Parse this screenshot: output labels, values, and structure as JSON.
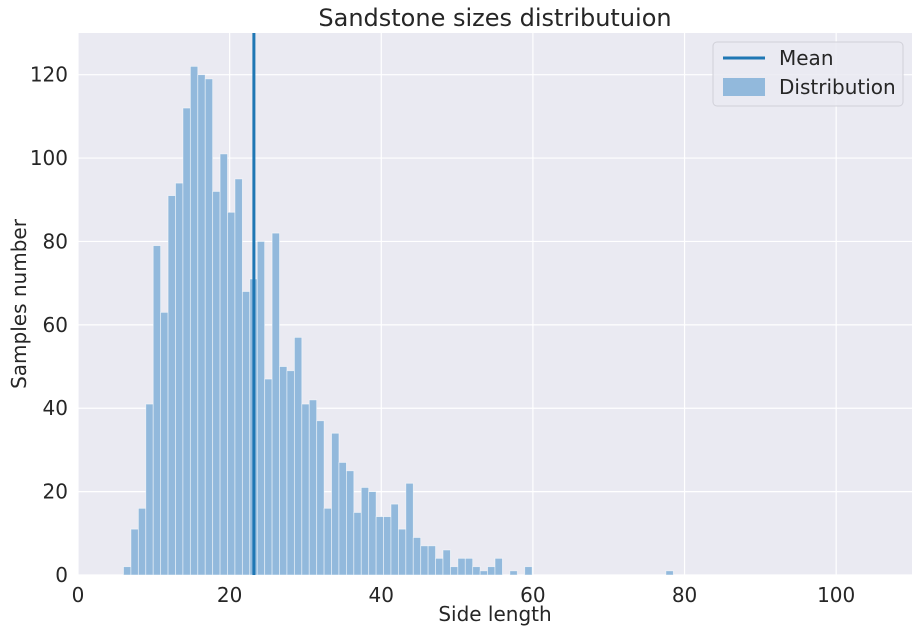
{
  "chart_data": {
    "type": "histogram",
    "title": "Sandstone sizes distributuion",
    "xlabel": "Side length",
    "ylabel": "Samples number",
    "xlim": [
      0,
      110
    ],
    "ylim": [
      0,
      130
    ],
    "xticks": [
      0,
      20,
      40,
      60,
      80,
      100
    ],
    "yticks": [
      0,
      20,
      40,
      60,
      80,
      100,
      120
    ],
    "grid": true,
    "background_color": "#EAEAF2",
    "bin_start": 6.0,
    "bin_width": 0.98,
    "bin_counts": [
      2,
      11,
      16,
      41,
      79,
      63,
      91,
      94,
      112,
      122,
      120,
      119,
      92,
      101,
      87,
      95,
      68,
      71,
      80,
      47,
      82,
      50,
      49,
      57,
      41,
      42,
      37,
      16,
      34,
      27,
      25,
      15,
      21,
      20,
      14,
      14,
      17,
      11,
      22,
      9,
      7,
      7,
      4,
      6,
      2,
      4,
      4,
      2,
      1,
      2,
      4,
      0,
      1,
      0,
      2,
      0,
      0,
      0,
      0,
      0,
      0,
      0,
      0,
      0,
      0,
      0,
      0,
      0,
      0,
      0,
      0,
      0,
      0,
      1
    ],
    "mean": 23.2,
    "series": [
      {
        "name": "Mean",
        "type": "vline",
        "color": "#1F77B4"
      },
      {
        "name": "Distribution",
        "type": "bars",
        "color": "#92B9DC"
      }
    ],
    "legend": {
      "placement": "top-right",
      "entries": [
        "Mean",
        "Distribution"
      ]
    }
  }
}
